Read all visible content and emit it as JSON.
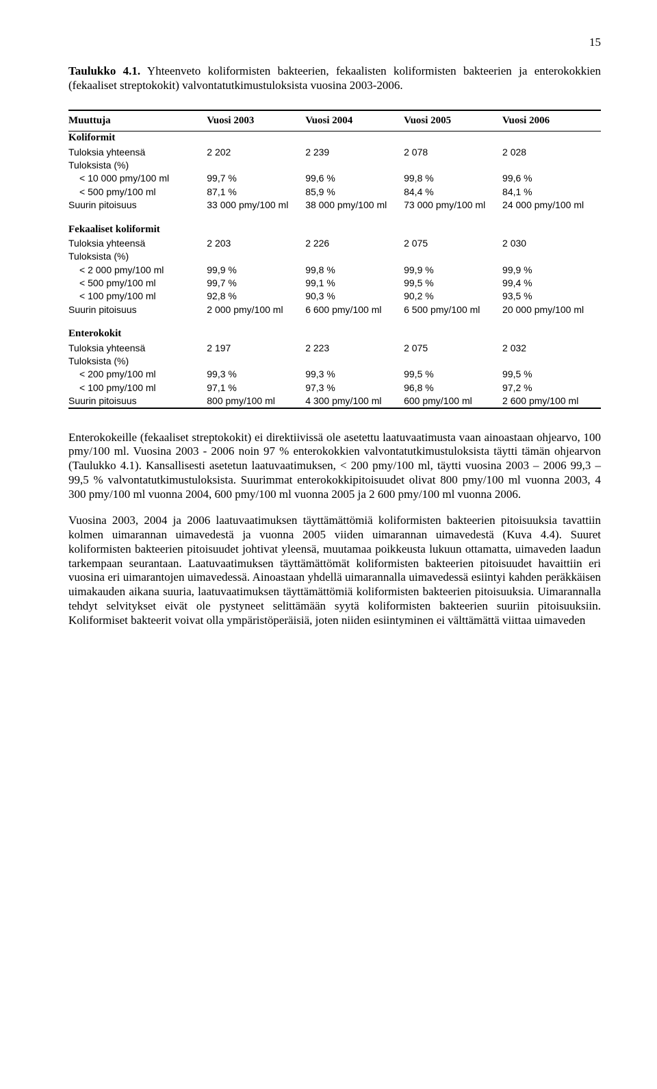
{
  "page_number": "15",
  "caption_bold": "Taulukko 4.1.",
  "caption_rest": " Yhteenveto koliformisten bakteerien, fekaalisten koliformisten bakteerien ja enterokokkien (fekaaliset streptokokit) valvontatutkimustuloksista vuosina 2003-2006.",
  "header": {
    "c0": "Muuttuja",
    "c1": "Vuosi 2003",
    "c2": "Vuosi 2004",
    "c3": "Vuosi 2005",
    "c4": "Vuosi 2006"
  },
  "sect1": {
    "title": "Koliformit",
    "r1": {
      "l": "Tuloksia yhteensä",
      "v": [
        "2 202",
        "2 239",
        "2 078",
        "2 028"
      ]
    },
    "r2": {
      "l": "Tuloksista (%)"
    },
    "r3": {
      "l": "< 10 000 pmy/100 ml",
      "v": [
        "99,7 %",
        "99,6 %",
        "99,8 %",
        "99,6 %"
      ]
    },
    "r4": {
      "l": "< 500 pmy/100 ml",
      "v": [
        "87,1 %",
        "85,9 %",
        "84,4 %",
        "84,1 %"
      ]
    },
    "r5": {
      "l": "Suurin pitoisuus",
      "v": [
        "33 000 pmy/100 ml",
        "38 000 pmy/100 ml",
        "73 000 pmy/100 ml",
        "24 000 pmy/100 ml"
      ]
    }
  },
  "sect2": {
    "title": "Fekaaliset koliformit",
    "r1": {
      "l": "Tuloksia yhteensä",
      "v": [
        "2 203",
        "2 226",
        "2 075",
        "2 030"
      ]
    },
    "r2": {
      "l": "Tuloksista (%)"
    },
    "r3": {
      "l": "< 2 000 pmy/100 ml",
      "v": [
        "99,9 %",
        "99,8 %",
        "99,9 %",
        "99,9 %"
      ]
    },
    "r4": {
      "l": "< 500 pmy/100 ml",
      "v": [
        "99,7 %",
        "99,1 %",
        "99,5 %",
        "99,4 %"
      ]
    },
    "r5": {
      "l": "< 100 pmy/100 ml",
      "v": [
        "92,8 %",
        "90,3 %",
        "90,2 %",
        "93,5 %"
      ]
    },
    "r6": {
      "l": "Suurin pitoisuus",
      "v": [
        "2 000 pmy/100 ml",
        "6 600 pmy/100 ml",
        "6 500 pmy/100 ml",
        "20 000 pmy/100 ml"
      ]
    }
  },
  "sect3": {
    "title": "Enterokokit",
    "r1": {
      "l": "Tuloksia yhteensä",
      "v": [
        "2 197",
        "2 223",
        "2 075",
        "2 032"
      ]
    },
    "r2": {
      "l": "Tuloksista (%)"
    },
    "r3": {
      "l": "< 200 pmy/100 ml",
      "v": [
        "99,3 %",
        "99,3 %",
        "99,5 %",
        "99,5 %"
      ]
    },
    "r4": {
      "l": "< 100 pmy/100 ml",
      "v": [
        "97,1 %",
        "97,3 %",
        "96,8 %",
        "97,2 %"
      ]
    },
    "r5": {
      "l": "Suurin pitoisuus",
      "v": [
        "800 pmy/100 ml",
        "4 300 pmy/100 ml",
        "600 pmy/100 ml",
        "2 600 pmy/100 ml"
      ]
    }
  },
  "para1": "Enterokokeille (fekaaliset streptokokit) ei direktiivissä ole asetettu laatuvaatimusta vaan ainoastaan ohjearvo, 100 pmy/100 ml. Vuosina 2003 - 2006 noin 97 % enterokokkien valvontatutkimustuloksista täytti tämän ohjearvon (Taulukko 4.1). Kansallisesti asetetun laatuvaatimuksen, < 200 pmy/100 ml, täytti vuosina 2003 – 2006 99,3 – 99,5 % valvontatutkimustuloksista. Suurimmat enterokokkipitoisuudet olivat 800 pmy/100 ml vuonna 2003, 4 300 pmy/100 ml vuonna 2004, 600 pmy/100 ml vuonna 2005 ja 2 600 pmy/100 ml vuonna 2006.",
  "para2": "Vuosina 2003, 2004 ja 2006 laatuvaatimuksen täyttämättömiä koliformisten bakteerien pitoisuuksia tavattiin kolmen uimarannan uimavedestä ja vuonna 2005 viiden uimarannan uimavedestä (Kuva 4.4). Suuret koliformisten bakteerien pitoisuudet johtivat yleensä, muutamaa poikkeusta lukuun ottamatta, uimaveden laadun tarkempaan seurantaan. Laatuvaatimuksen täyttämättömät koliformisten bakteerien pitoisuudet havaittiin eri vuosina eri uimarantojen uimavedessä. Ainoastaan yhdellä uimarannalla uimavedessä esiintyi kahden peräkkäisen uimakauden aikana suuria, laatuvaatimuksen täyttämättömiä koliformisten bakteerien pitoisuuksia. Uimarannalla tehdyt selvitykset eivät ole pystyneet selittämään syytä koliformisten bakteerien suuriin pitoisuuksiin. Koliformiset bakteerit voivat olla ympäristöperäisiä, joten niiden esiintyminen ei välttämättä viittaa uimaveden"
}
